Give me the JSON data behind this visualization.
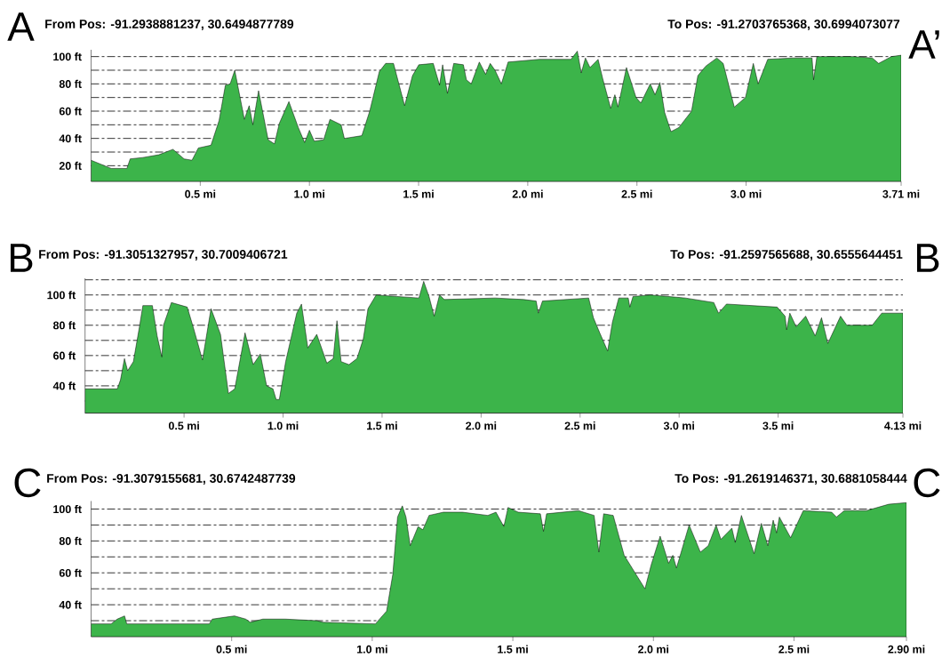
{
  "chart_data": [
    {
      "type": "area",
      "annotations": [
        "A",
        "From Pos: -91.2938881237, 30.6494877789",
        "To Pos: -91.2703765368, 30.6994073077",
        "A’"
      ],
      "color": "#3cb44a",
      "grid": "y",
      "x": [
        0,
        0.092,
        0.164,
        0.179,
        0.237,
        0.31,
        0.375,
        0.426,
        0.462,
        0.491,
        0.549,
        0.586,
        0.615,
        0.637,
        0.658,
        0.702,
        0.724,
        0.741,
        0.767,
        0.811,
        0.84,
        0.862,
        0.906,
        0.949,
        0.978,
        1.0,
        1.022,
        1.065,
        1.094,
        1.145,
        1.16,
        1.24,
        1.276,
        1.32,
        1.349,
        1.385,
        1.436,
        1.472,
        1.501,
        1.567,
        1.596,
        1.61,
        1.632,
        1.661,
        1.705,
        1.719,
        1.741,
        1.778,
        1.807,
        1.828,
        1.85,
        1.879,
        1.91,
        2.053,
        2.198,
        2.227,
        2.245,
        2.264,
        2.285,
        2.322,
        2.343,
        2.38,
        2.399,
        2.413,
        2.452,
        2.496,
        2.518,
        2.561,
        2.583,
        2.605,
        2.627,
        2.656,
        2.692,
        2.75,
        2.779,
        2.815,
        2.866,
        2.895,
        2.946,
        2.997,
        3.033,
        3.055,
        3.099,
        3.215,
        3.302,
        3.309,
        3.324,
        3.491,
        3.578,
        3.607,
        3.665,
        3.71
      ],
      "values": [
        24,
        18,
        18,
        25,
        26,
        28,
        32,
        25,
        24,
        33,
        35,
        53,
        79,
        80,
        90,
        54,
        64,
        50,
        75,
        39,
        36,
        51,
        67,
        48,
        37,
        46,
        38,
        39,
        54,
        50,
        40,
        42,
        60,
        89,
        95,
        95,
        64,
        86,
        94,
        95,
        79,
        94,
        73,
        95,
        94,
        83,
        80,
        96,
        87,
        95,
        90,
        80,
        96,
        98,
        98,
        104,
        88,
        99,
        92,
        98,
        84,
        62,
        72,
        63,
        92,
        70,
        66,
        80,
        72,
        81,
        59,
        45,
        48,
        60,
        86,
        93,
        99,
        95,
        63,
        70,
        95,
        80,
        98,
        99,
        99,
        83,
        100,
        100,
        99,
        95,
        100,
        101
      ],
      "xlim": [
        0,
        3.71
      ],
      "ylim": [
        8.5,
        105
      ],
      "xticks": [
        {
          "value": 0.5,
          "label": "0.5 mi"
        },
        {
          "value": 1.0,
          "label": "1.0 mi"
        },
        {
          "value": 1.5,
          "label": "1.5 mi"
        },
        {
          "value": 2.0,
          "label": "2.0 mi"
        },
        {
          "value": 2.5,
          "label": "2.5 mi"
        },
        {
          "value": 3.0,
          "label": "3.0 mi"
        },
        {
          "value": 3.71,
          "label": "3.71 mi"
        }
      ],
      "yticks": [
        {
          "value": 20,
          "label": "20 ft"
        },
        {
          "value": 30,
          "label": null
        },
        {
          "value": 40,
          "label": "40 ft"
        },
        {
          "value": 50,
          "label": null
        },
        {
          "value": 60,
          "label": "60 ft"
        },
        {
          "value": 70,
          "label": null
        },
        {
          "value": 80,
          "label": "80 ft"
        },
        {
          "value": 90,
          "label": null
        },
        {
          "value": 100,
          "label": "100 ft"
        }
      ]
    },
    {
      "type": "area",
      "annotations": [
        "B",
        "From Pos: -91.3051327957, 30.7009406721",
        "To Pos: -91.2597565688, 30.6555644451",
        "B"
      ],
      "color": "#3cb44a",
      "grid": "y",
      "x": [
        0,
        0.083,
        0.163,
        0.179,
        0.199,
        0.215,
        0.244,
        0.276,
        0.292,
        0.34,
        0.364,
        0.388,
        0.396,
        0.436,
        0.516,
        0.548,
        0.593,
        0.636,
        0.684,
        0.724,
        0.756,
        0.808,
        0.849,
        0.885,
        0.917,
        0.949,
        0.965,
        0.981,
        1.013,
        1.069,
        1.093,
        1.125,
        1.17,
        1.221,
        1.253,
        1.272,
        1.293,
        1.333,
        1.373,
        1.405,
        1.429,
        1.47,
        1.574,
        1.686,
        1.71,
        1.737,
        1.763,
        1.79,
        1.814,
        2.071,
        2.215,
        2.278,
        2.289,
        2.31,
        2.543,
        2.567,
        2.599,
        2.639,
        2.663,
        2.695,
        2.743,
        2.751,
        2.767,
        2.855,
        3.031,
        3.175,
        3.199,
        3.239,
        3.495,
        3.535,
        3.543,
        3.559,
        3.591,
        3.639,
        3.687,
        3.719,
        3.751,
        3.815,
        3.847,
        3.975,
        4.023,
        4.13
      ],
      "values": [
        38,
        38,
        38,
        44,
        58,
        50,
        56,
        80,
        93,
        93,
        73,
        59,
        80,
        95,
        92,
        78,
        57,
        91,
        74,
        35,
        38,
        75,
        54,
        61,
        40,
        38,
        31,
        31,
        56,
        88,
        94,
        65,
        74,
        55,
        58,
        83,
        56,
        54,
        58,
        71,
        91,
        100,
        99,
        98,
        109,
        99,
        86,
        100,
        97,
        98,
        97,
        96,
        88,
        96,
        98,
        85,
        75,
        63,
        82,
        98,
        98,
        92,
        99,
        100,
        98,
        95,
        88,
        94,
        92,
        86,
        77,
        88,
        79,
        86,
        73,
        85,
        68,
        86,
        80,
        80,
        88,
        88
      ],
      "xlim": [
        0,
        4.13
      ],
      "ylim": [
        22,
        111
      ],
      "xticks": [
        {
          "value": 0.5,
          "label": "0.5 mi"
        },
        {
          "value": 1.0,
          "label": "1.0 mi"
        },
        {
          "value": 1.5,
          "label": "1.5 mi"
        },
        {
          "value": 2.0,
          "label": "2.0 mi"
        },
        {
          "value": 2.5,
          "label": "2.5 mi"
        },
        {
          "value": 3.0,
          "label": "3.0 mi"
        },
        {
          "value": 3.5,
          "label": "3.5 mi"
        },
        {
          "value": 4.13,
          "label": "4.13 mi"
        }
      ],
      "yticks": [
        {
          "value": 30,
          "label": null
        },
        {
          "value": 40,
          "label": "40 ft"
        },
        {
          "value": 50,
          "label": null
        },
        {
          "value": 60,
          "label": "60 ft"
        },
        {
          "value": 70,
          "label": null
        },
        {
          "value": 80,
          "label": "80 ft"
        },
        {
          "value": 90,
          "label": null
        },
        {
          "value": 100,
          "label": "100 ft"
        },
        {
          "value": 110,
          "label": null
        }
      ]
    },
    {
      "type": "area",
      "annotations": [
        "C",
        "From Pos: -91.3079155681, 30.6742487739",
        "To Pos: -91.2619146371, 30.6881058444",
        "C"
      ],
      "color": "#3cb44a",
      "grid": "y",
      "x": [
        0,
        0.071,
        0.093,
        0.119,
        0.127,
        0.42,
        0.431,
        0.51,
        0.55,
        0.566,
        0.611,
        0.69,
        0.803,
        0.825,
        1.011,
        1.051,
        1.073,
        1.09,
        1.107,
        1.12,
        1.135,
        1.163,
        1.18,
        1.202,
        1.253,
        1.321,
        1.411,
        1.44,
        1.468,
        1.483,
        1.519,
        1.598,
        1.609,
        1.62,
        1.733,
        1.789,
        1.806,
        1.823,
        1.857,
        1.896,
        1.97,
        1.992,
        2.024,
        2.054,
        2.069,
        2.082,
        2.127,
        2.167,
        2.195,
        2.223,
        2.24,
        2.279,
        2.291,
        2.313,
        2.358,
        2.384,
        2.407,
        2.426,
        2.438,
        2.448,
        2.488,
        2.533,
        2.634,
        2.651,
        2.679,
        2.758,
        2.837,
        2.9
      ],
      "values": [
        28,
        28,
        31,
        33,
        28,
        28,
        31,
        33,
        31,
        29,
        31,
        31,
        30,
        29,
        28,
        36,
        59,
        95,
        102,
        95,
        77,
        89,
        87,
        96,
        98,
        98,
        96,
        98,
        89,
        101,
        98,
        97,
        86,
        97,
        99,
        96,
        73,
        97,
        96,
        71,
        50,
        65,
        83,
        66,
        71,
        63,
        90,
        73,
        77,
        90,
        81,
        88,
        79,
        96,
        72,
        91,
        77,
        93,
        85,
        95,
        82,
        99,
        98,
        95,
        99,
        99,
        103,
        104
      ],
      "xlim": [
        0,
        2.9
      ],
      "ylim": [
        20,
        105
      ],
      "xticks": [
        {
          "value": 0.5,
          "label": "0.5 mi"
        },
        {
          "value": 1.0,
          "label": "1.0 mi"
        },
        {
          "value": 1.5,
          "label": "1.5 mi"
        },
        {
          "value": 2.0,
          "label": "2.0 mi"
        },
        {
          "value": 2.5,
          "label": "2.5 mi"
        },
        {
          "value": 2.9,
          "label": "2.90 mi"
        }
      ],
      "yticks": [
        {
          "value": 30,
          "label": null
        },
        {
          "value": 40,
          "label": "40 ft"
        },
        {
          "value": 50,
          "label": null
        },
        {
          "value": 60,
          "label": "60 ft"
        },
        {
          "value": 70,
          "label": null
        },
        {
          "value": 80,
          "label": "80 ft"
        },
        {
          "value": 90,
          "label": null
        },
        {
          "value": 100,
          "label": "100 ft"
        }
      ]
    }
  ]
}
